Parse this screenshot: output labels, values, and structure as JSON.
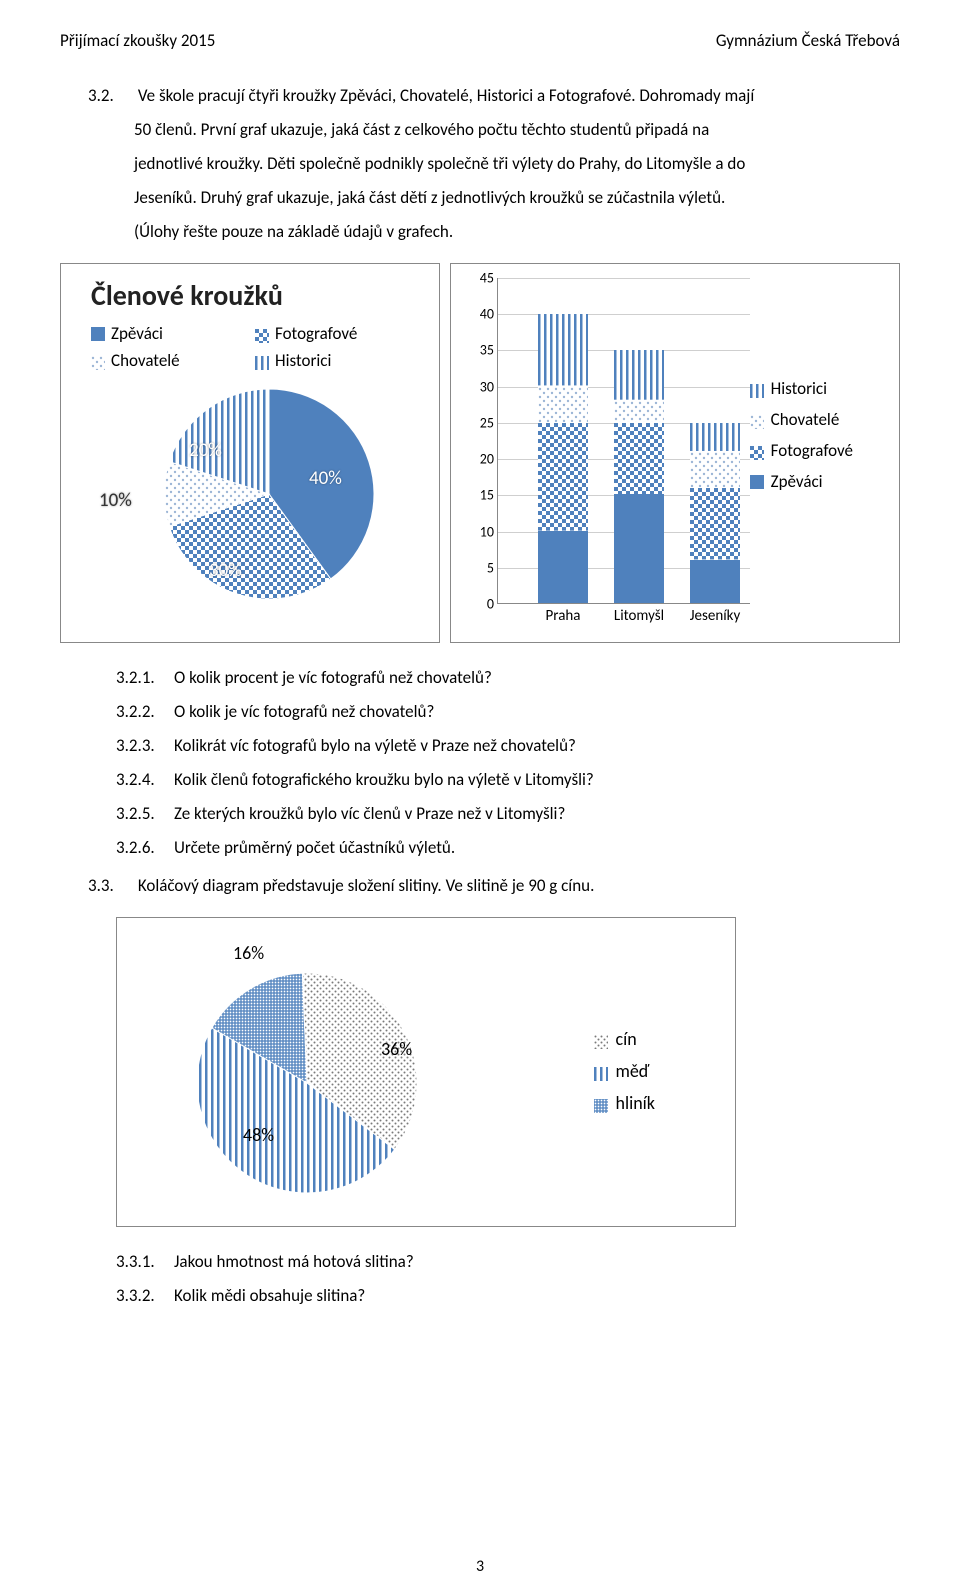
{
  "header": {
    "left": "Přijímací zkoušky 2015",
    "right": "Gymnázium Česká Třebová"
  },
  "intro": {
    "num": "3.2.",
    "lines": [
      "Ve škole pracují čtyři kroužky Zpěváci, Chovatelé, Historici a Fotografové. Dohromady mají",
      "50 členů. První graf ukazuje, jaká část z celkového počtu těchto studentů připadá na",
      "jednotlivé kroužky. Děti společně podnikly společně tři výlety do Prahy, do Litomyšle a do",
      "Jeseníků. Druhý graf ukazuje, jaká část dětí z jednotlivých kroužků se zúčastnila výletů.",
      "(Úlohy řešte pouze na základě údajů v grafech."
    ]
  },
  "pie_chart": {
    "title": "Členové kroužků",
    "type": "pie",
    "slices": [
      {
        "name": "Zpěváci",
        "value": 40,
        "pattern": "solid-blue",
        "label": "40%"
      },
      {
        "name": "Fotografové",
        "value": 30,
        "pattern": "check-blue",
        "label": "30%"
      },
      {
        "name": "Chovatelé",
        "value": 10,
        "pattern": "dot-light",
        "label": "10%"
      },
      {
        "name": "Historici",
        "value": 20,
        "pattern": "vstripes-blue",
        "label": "20%"
      }
    ],
    "legend_order": [
      "Zpěváci",
      "Fotografové",
      "Chovatelé",
      "Historici"
    ],
    "colors": {
      "blue": "#4f81bd",
      "border": "#888888",
      "text_dark": "#333333"
    }
  },
  "bar_chart": {
    "type": "stacked-bar",
    "categories": [
      "Praha",
      "Litomyšl",
      "Jeseníky"
    ],
    "ylim": [
      0,
      45
    ],
    "ytick_step": 5,
    "series_order": [
      "Zpěváci",
      "Fotografové",
      "Chovatelé",
      "Historici"
    ],
    "legend_order": [
      "Historici",
      "Chovatelé",
      "Fotografové",
      "Zpěváci"
    ],
    "patterns": {
      "Zpěváci": "solid-blue",
      "Fotografové": "check-blue",
      "Chovatelé": "dot-light",
      "Historici": "vstripes-blue"
    },
    "data": {
      "Praha": {
        "Zpěváci": 10,
        "Fotografové": 15,
        "Chovatelé": 5,
        "Historici": 10
      },
      "Litomyšl": {
        "Zpěváci": 15,
        "Fotografové": 10,
        "Chovatelé": 3,
        "Historici": 7
      },
      "Jeseníky": {
        "Zpěváci": 6,
        "Fotografové": 10,
        "Chovatelé": 5,
        "Historici": 4
      }
    },
    "grid_color": "#cfcfcf",
    "label_fontsize": 14
  },
  "questions_32": [
    {
      "num": "3.2.1.",
      "text": "O kolik procent je víc fotografů než chovatelů?"
    },
    {
      "num": "3.2.2.",
      "text": "O kolik je víc fotografů než chovatelů?"
    },
    {
      "num": "3.2.3.",
      "text": "Kolikrát víc fotografů bylo na výletě v Praze než chovatelů?"
    },
    {
      "num": "3.2.4.",
      "text": "Kolik členů fotografického kroužku bylo na výletě v Litomyšli?"
    },
    {
      "num": "3.2.5.",
      "text": "Ze kterých kroužků bylo víc členů v Praze než v Litomyšli?"
    },
    {
      "num": "3.2.6.",
      "text": "Určete průměrný počet účastníků výletů."
    }
  ],
  "task_33": {
    "num": "3.3.",
    "text": "Koláčový diagram představuje složení slitiny. Ve slitině je 90 g cínu."
  },
  "alloy_chart": {
    "type": "pie",
    "slices": [
      {
        "name": "cín",
        "value": 36,
        "pattern": "dot-dense",
        "label": "36%"
      },
      {
        "name": "měď",
        "value": 48,
        "pattern": "vstripes-blue",
        "label": "48%"
      },
      {
        "name": "hliník",
        "value": 16,
        "pattern": "grid-blue",
        "label": "16%"
      }
    ],
    "legend_order": [
      "cín",
      "měď",
      "hliník"
    ],
    "label_color": "#000000"
  },
  "questions_33": [
    {
      "num": "3.3.1.",
      "text": "Jakou hmotnost má hotová slitina?"
    },
    {
      "num": "3.3.2.",
      "text": "Kolik mědi obsahuje slitina?"
    }
  ],
  "page_number": "3"
}
